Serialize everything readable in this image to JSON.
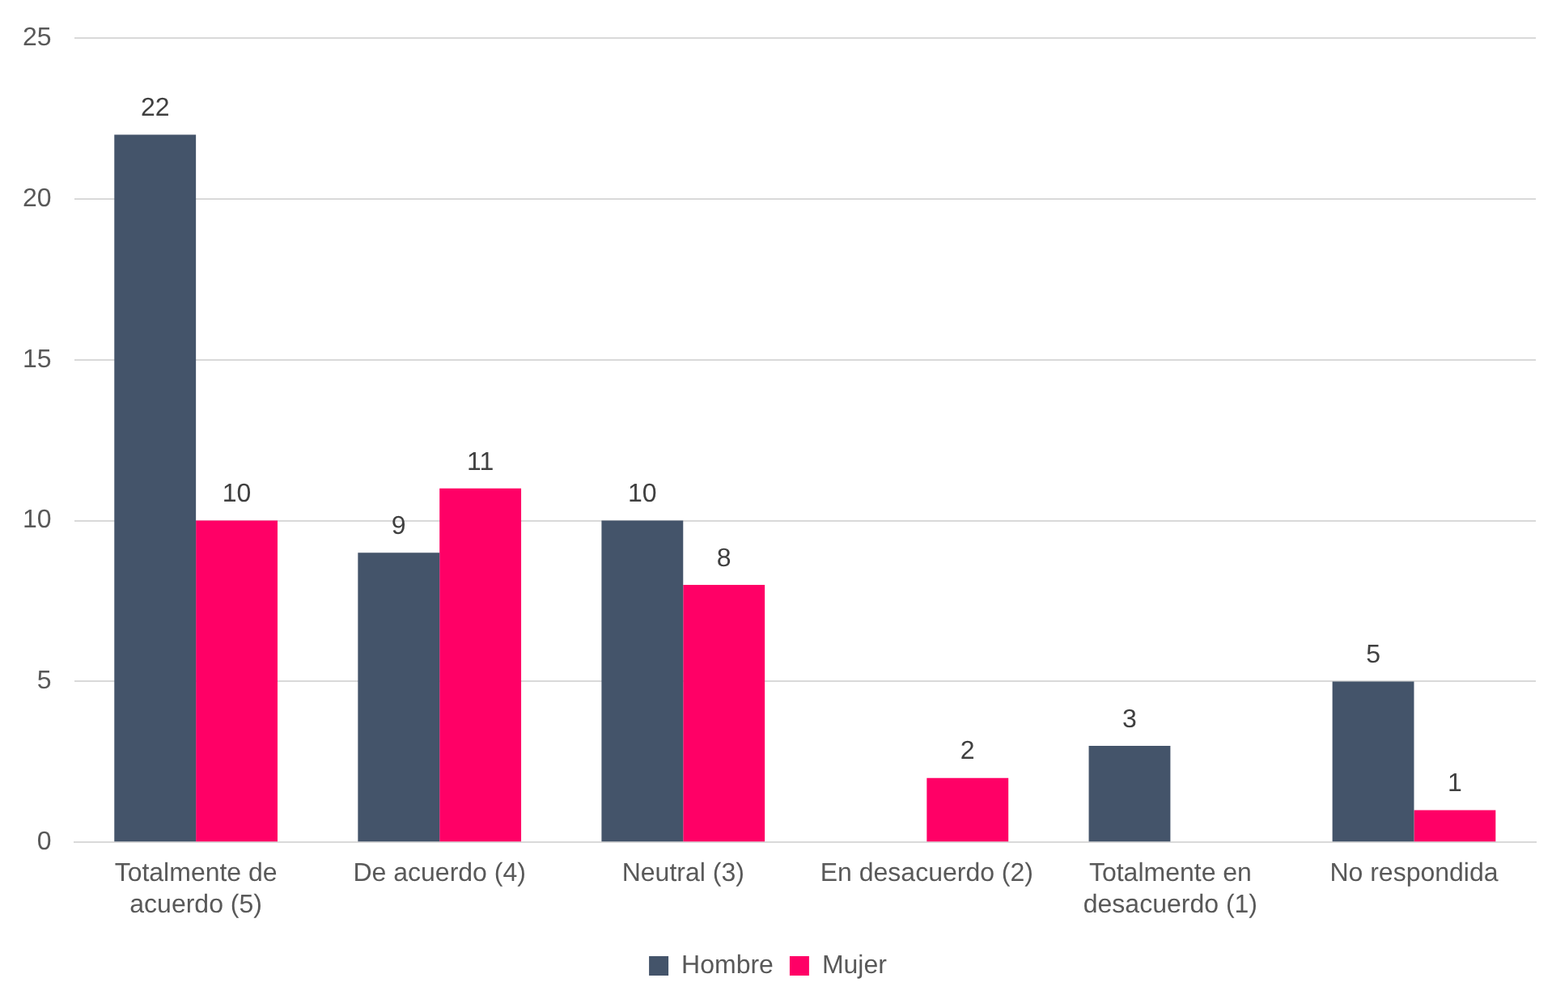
{
  "chart_data": {
    "type": "bar",
    "categories": [
      "Totalmente de acuerdo (5)",
      "De acuerdo (4)",
      "Neutral (3)",
      "En desacuerdo (2)",
      "Totalmente en desacuerdo (1)",
      "No respondida"
    ],
    "series": [
      {
        "name": "Hombre",
        "color": "#44546a",
        "values": [
          22,
          9,
          10,
          null,
          3,
          5
        ]
      },
      {
        "name": "Mujer",
        "color": "#ff0066",
        "values": [
          10,
          11,
          8,
          2,
          null,
          1
        ]
      }
    ],
    "ylim": [
      0,
      25
    ],
    "yticks": [
      0,
      5,
      10,
      15,
      20,
      25
    ],
    "grid": "y",
    "legend": "bottom",
    "data_labels": true
  }
}
